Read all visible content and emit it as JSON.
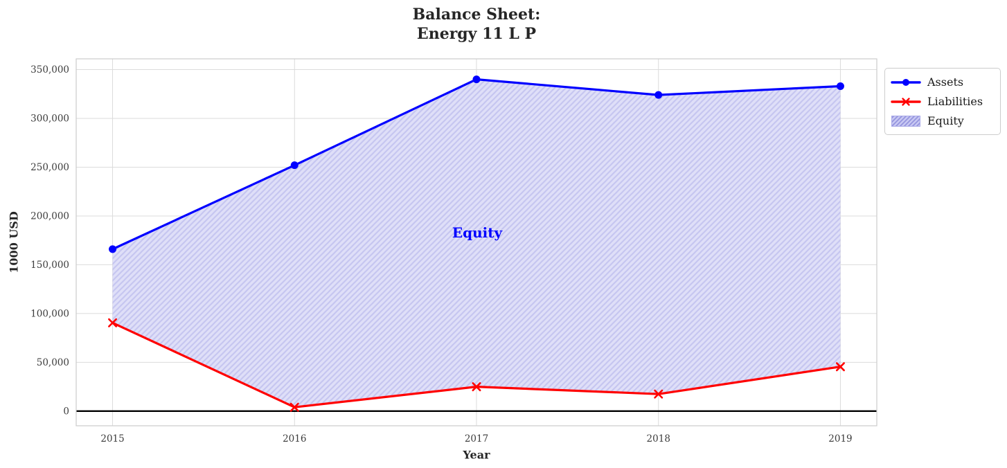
{
  "title": {
    "line1": "Balance Sheet:",
    "line2": "Energy 11 L P"
  },
  "annotation": {
    "text": "Equity",
    "color": "#0000ff"
  },
  "legend": {
    "position": "upper-right-outside",
    "items": [
      {
        "label": "Assets",
        "type": "line",
        "color": "#0000ff",
        "marker": "circle"
      },
      {
        "label": "Liabilities",
        "type": "line",
        "color": "#ff0000",
        "marker": "x"
      },
      {
        "label": "Equity",
        "type": "patch",
        "fill": "#c9c9f3",
        "hatch_color": "#9595de",
        "border_color": "#a9a9e8"
      }
    ]
  },
  "chart_data": {
    "type": "line",
    "title": "Balance Sheet: Energy 11 L P",
    "xlabel": "Year",
    "ylabel": "1000 USD",
    "categories": [
      2015,
      2016,
      2017,
      2018,
      2019
    ],
    "series": [
      {
        "name": "Assets",
        "color": "#0000ff",
        "marker": "circle",
        "values": [
          166000,
          252000,
          340000,
          324000,
          333000
        ]
      },
      {
        "name": "Liabilities",
        "color": "#ff0000",
        "marker": "x",
        "values": [
          90500,
          4000,
          25000,
          17500,
          45500
        ]
      }
    ],
    "fill_between": {
      "label": "Equity",
      "upper": "Assets",
      "lower": "Liabilities",
      "fill_color": "#dfdff8",
      "hatch": "//",
      "hatch_color": "#c6c6f0"
    },
    "yticks": [
      0,
      50000,
      100000,
      150000,
      200000,
      250000,
      300000,
      350000
    ],
    "ytick_labels": [
      "0",
      "50,000",
      "100,000",
      "150,000",
      "200,000",
      "250,000",
      "300,000",
      "350,000"
    ],
    "xtick_labels": [
      "2015",
      "2016",
      "2017",
      "2018",
      "2019"
    ],
    "ylim": [
      -15000,
      361000
    ],
    "xlim": [
      2014.8,
      2019.2
    ],
    "grid": true,
    "grid_color": "#dbdbdb",
    "spine_color": "#cccccc",
    "zero_line_color": "#000000",
    "tick_label_color": "#3b3b3b"
  }
}
